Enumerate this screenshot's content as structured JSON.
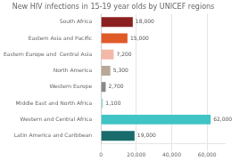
{
  "chart_data": {
    "type": "bar",
    "orientation": "horizontal",
    "title": "New HIV infections in 15-19 year olds by UNICEF regions",
    "categories": [
      "South Africa",
      "Eastern Asia and Pacific",
      "Eastern Europe and  Central Asia",
      "North America",
      "Western Europe",
      "Middle East and North Africa",
      "Western and Central Africa",
      "Latin America and Caribbean"
    ],
    "values": [
      18000,
      15000,
      7200,
      5300,
      2700,
      1100,
      62000,
      19000
    ],
    "value_labels": [
      "18,000",
      "15,000",
      "7,200",
      "5,300",
      "2,700",
      "1,100",
      "62,000",
      "19,000"
    ],
    "data_labels": true,
    "colors": [
      "#8b2020",
      "#e05a28",
      "#f4b8a8",
      "#b8a898",
      "#888888",
      "#a8d8d8",
      "#40c4c4",
      "#1a6b6b"
    ],
    "xlim": [
      0,
      70000
    ],
    "xticks": [
      0,
      {
        "value": 20000,
        "label": "20,000"
      },
      {
        "value": 40000,
        "label": "40,000"
      },
      {
        "value": 60000,
        "label": "60,000"
      }
    ],
    "grid": true
  }
}
